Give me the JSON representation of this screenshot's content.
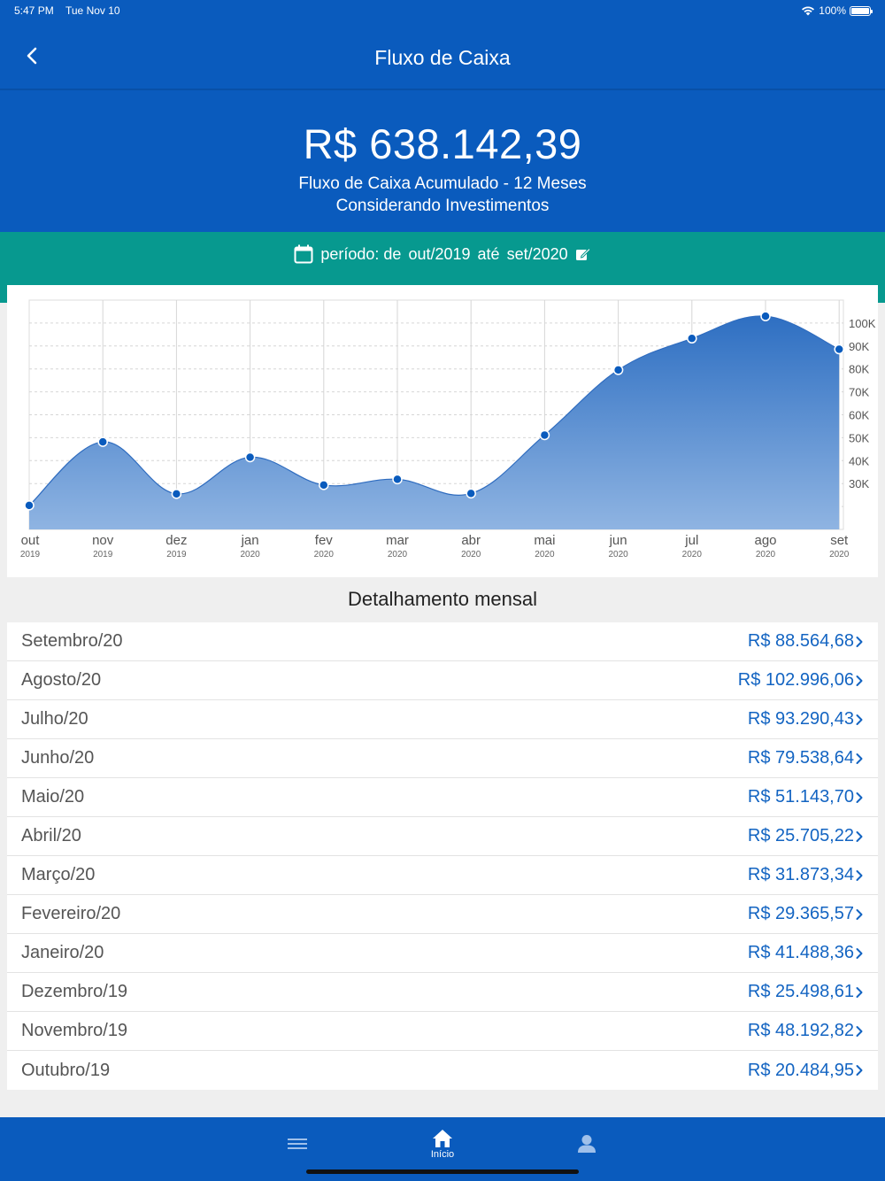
{
  "status": {
    "time": "5:47 PM",
    "date": "Tue Nov 10",
    "battery": "100%"
  },
  "nav": {
    "title": "Fluxo de Caixa"
  },
  "summary": {
    "total": "R$ 638.142,39",
    "line1": "Fluxo de Caixa Acumulado - 12 Meses",
    "line2": "Considerando Investimentos"
  },
  "period": {
    "label": "período: de",
    "from": "out/2019",
    "until_label": "até",
    "to": "set/2020"
  },
  "colors": {
    "primary": "#0a5bbd",
    "teal": "#07998f",
    "link": "#1364c2",
    "area_top": "#2e6fc2",
    "area_bottom": "#8fb4e2",
    "point": "#0a5bbd"
  },
  "chart_data": {
    "type": "area",
    "categories": [
      "out",
      "nov",
      "dez",
      "jan",
      "fev",
      "mar",
      "abr",
      "mai",
      "jun",
      "jul",
      "ago",
      "set"
    ],
    "years": [
      "2019",
      "2019",
      "2019",
      "2020",
      "2020",
      "2020",
      "2020",
      "2020",
      "2020",
      "2020",
      "2020",
      "2020"
    ],
    "values": [
      20484.95,
      48192.82,
      25498.61,
      41488.36,
      29365.57,
      31873.34,
      25705.22,
      51143.7,
      79538.64,
      93290.43,
      102996.06,
      88564.68
    ],
    "yticks": [
      "30K",
      "40K",
      "50K",
      "60K",
      "70K",
      "80K",
      "90K",
      "100K"
    ],
    "ylim": [
      10000,
      110000
    ],
    "grid": true
  },
  "details": {
    "title": "Detalhamento mensal",
    "items": [
      {
        "month": "Setembro/20",
        "value": "R$ 88.564,68"
      },
      {
        "month": "Agosto/20",
        "value": "R$ 102.996,06"
      },
      {
        "month": "Julho/20",
        "value": "R$ 93.290,43"
      },
      {
        "month": "Junho/20",
        "value": "R$ 79.538,64"
      },
      {
        "month": "Maio/20",
        "value": "R$ 51.143,70"
      },
      {
        "month": "Abril/20",
        "value": "R$ 25.705,22"
      },
      {
        "month": "Março/20",
        "value": "R$ 31.873,34"
      },
      {
        "month": "Fevereiro/20",
        "value": "R$ 29.365,57"
      },
      {
        "month": "Janeiro/20",
        "value": "R$ 41.488,36"
      },
      {
        "month": "Dezembro/19",
        "value": "R$ 25.498,61"
      },
      {
        "month": "Novembro/19",
        "value": "R$ 48.192,82"
      },
      {
        "month": "Outubro/19",
        "value": "R$ 20.484,95"
      }
    ]
  },
  "tabs": [
    {
      "icon": "menu-icon",
      "label": ""
    },
    {
      "icon": "home-icon",
      "label": "Início"
    },
    {
      "icon": "profile-icon",
      "label": ""
    }
  ]
}
